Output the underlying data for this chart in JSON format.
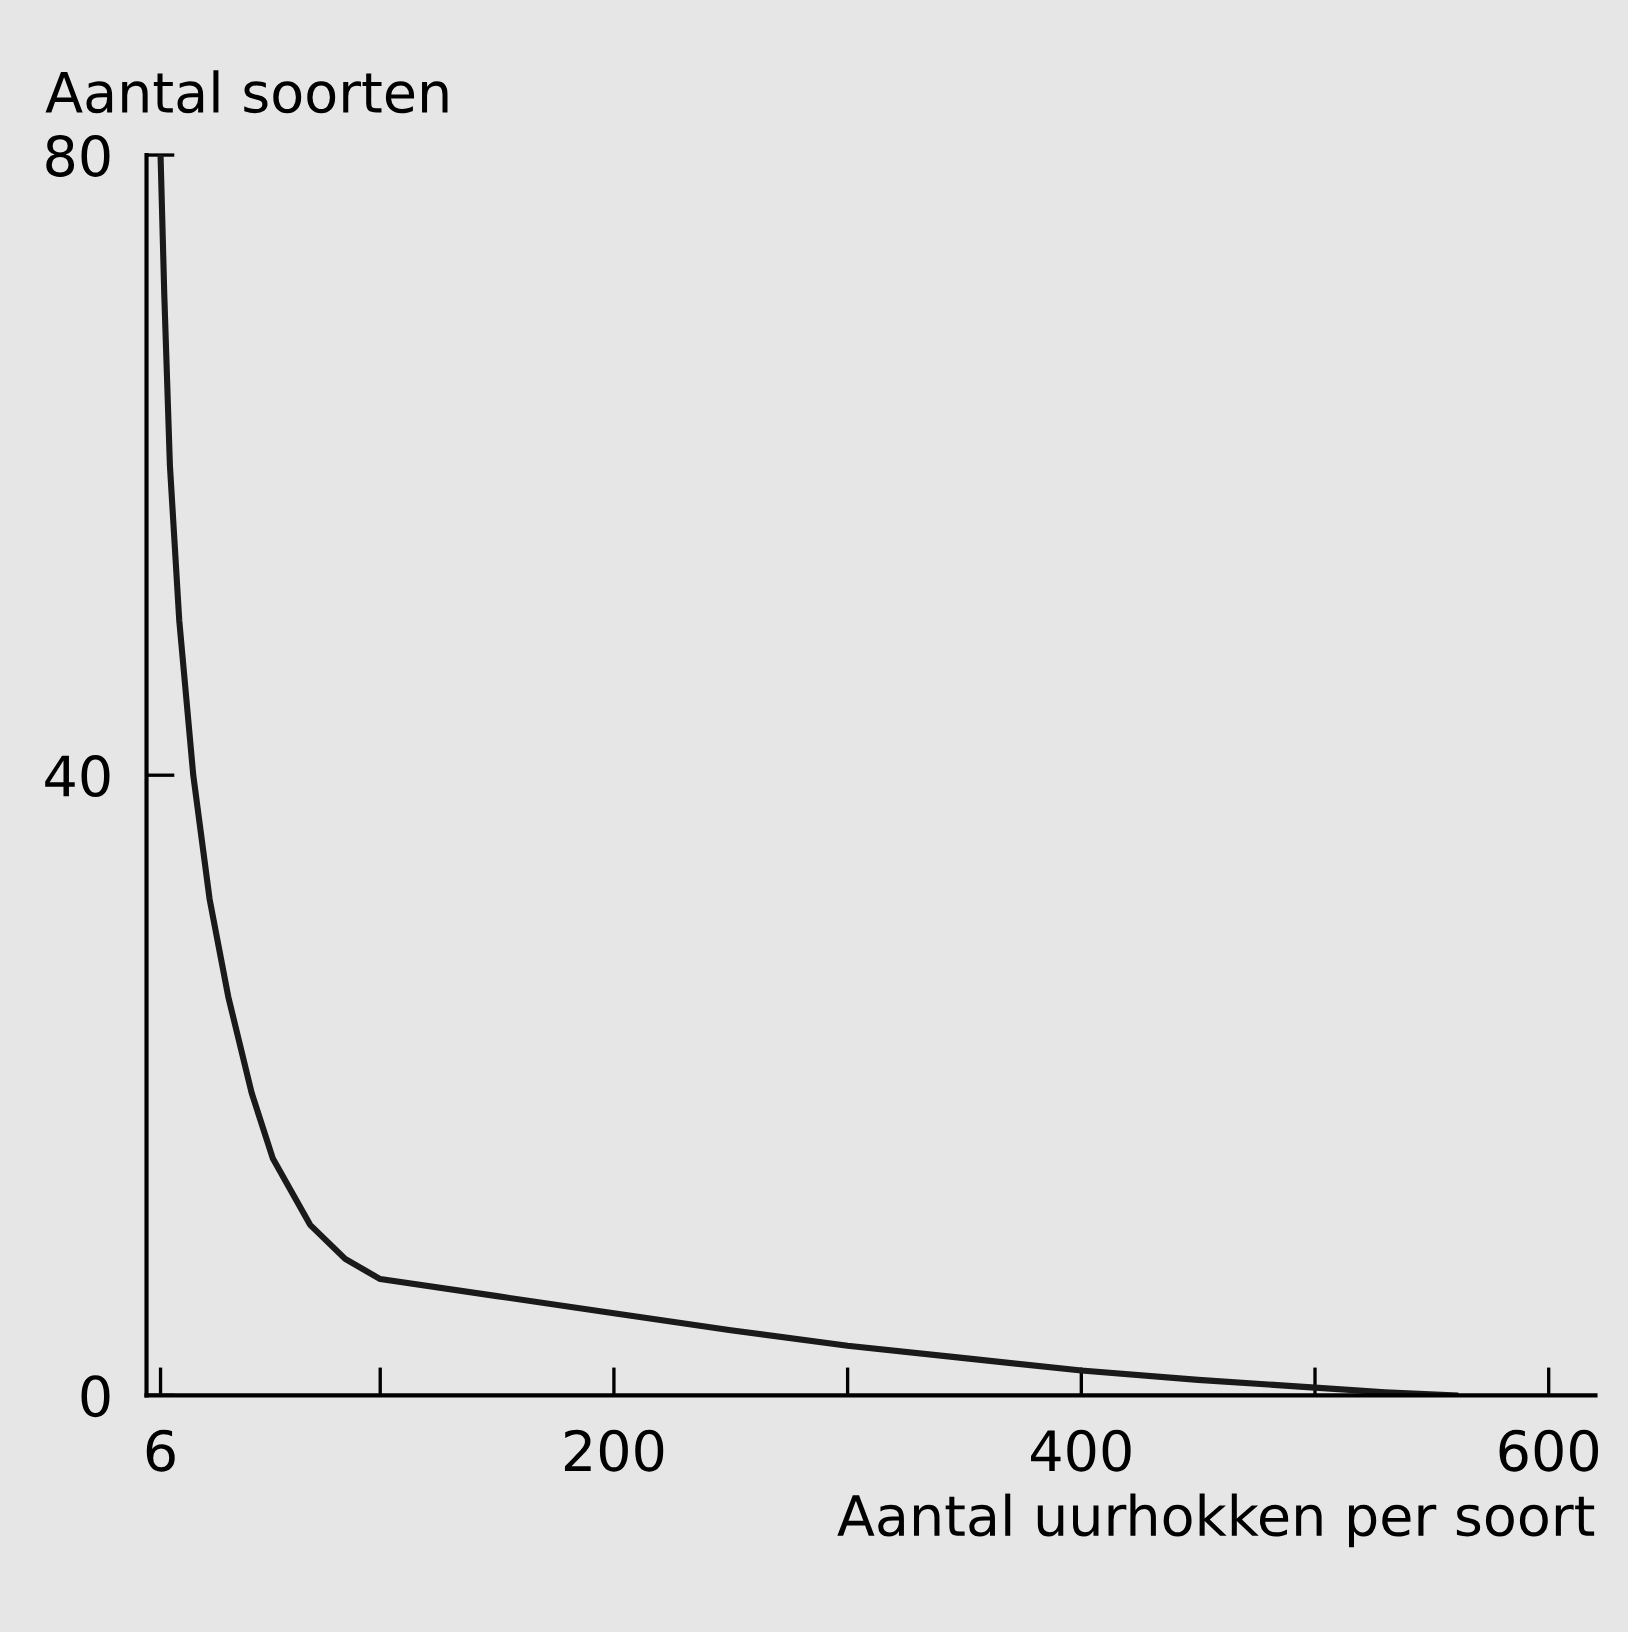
{
  "chart_data": {
    "type": "line",
    "xlabel": "Aantal uurhokken per soort",
    "ylabel": "Aantal soorten",
    "x": [
      6,
      7.6,
      10,
      14,
      20,
      27,
      35,
      45,
      54,
      70,
      85,
      100,
      150,
      200,
      250,
      300,
      350,
      400,
      450,
      500,
      530,
      560
    ],
    "series": [
      {
        "color": "#1a1a1a",
        "values": [
          80,
          71,
          60,
          50,
          40,
          32,
          25.7,
          19.5,
          15.3,
          11,
          8.8,
          7.5,
          6.4,
          5.3,
          4.2,
          3.2,
          2.4,
          1.6,
          1,
          0.5,
          0.2,
          0
        ]
      }
    ],
    "xlim": [
      0,
      620
    ],
    "ylim": [
      0,
      80
    ],
    "xticks": [
      {
        "value": 6,
        "label": "6"
      },
      {
        "value": 100,
        "label": null
      },
      200,
      {
        "value": 300,
        "label": null
      },
      400,
      {
        "value": 500,
        "label": null
      },
      600
    ],
    "yticks": [
      0,
      40,
      80
    ],
    "grid": false,
    "legend": false,
    "marker": "none",
    "line_style": "solid"
  }
}
